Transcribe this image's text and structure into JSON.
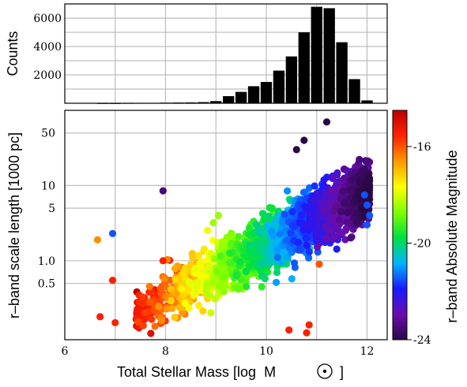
{
  "chart_data": [
    {
      "type": "bar",
      "name": "mass-histogram",
      "ylabel": "Counts",
      "yticks": [
        2000,
        4000,
        6000
      ],
      "ylim": [
        0,
        7000
      ],
      "xlim": [
        6,
        12.4
      ],
      "bin_width": 0.25,
      "bins": [
        {
          "x": 6.75,
          "y": 10
        },
        {
          "x": 7.0,
          "y": 10
        },
        {
          "x": 7.25,
          "y": 20
        },
        {
          "x": 7.5,
          "y": 25
        },
        {
          "x": 7.75,
          "y": 30
        },
        {
          "x": 8.0,
          "y": 40
        },
        {
          "x": 8.25,
          "y": 50
        },
        {
          "x": 8.5,
          "y": 60
        },
        {
          "x": 8.75,
          "y": 80
        },
        {
          "x": 9.0,
          "y": 150
        },
        {
          "x": 9.25,
          "y": 500
        },
        {
          "x": 9.5,
          "y": 800
        },
        {
          "x": 9.75,
          "y": 1200
        },
        {
          "x": 10.0,
          "y": 1500
        },
        {
          "x": 10.25,
          "y": 2300
        },
        {
          "x": 10.5,
          "y": 3300
        },
        {
          "x": 10.75,
          "y": 5000
        },
        {
          "x": 11.0,
          "y": 6800
        },
        {
          "x": 11.25,
          "y": 6700
        },
        {
          "x": 11.5,
          "y": 4300
        },
        {
          "x": 11.75,
          "y": 1700
        },
        {
          "x": 12.0,
          "y": 200
        }
      ]
    },
    {
      "type": "scatter",
      "name": "size-mass-relation",
      "xlabel_prefix": "Total Stellar Mass [log  M",
      "xlabel_suffix": "  ]",
      "ylabel": "r–band scale length [1000 pc]",
      "xlim": [
        6,
        12.4
      ],
      "xticks": [
        6,
        8,
        10,
        12
      ],
      "ylim_log10": [
        -1.05,
        2.0
      ],
      "yticks": [
        {
          "value": 0.5,
          "label": "0.5"
        },
        {
          "value": 1.0,
          "label": "1.0"
        },
        {
          "value": 5,
          "label": "5"
        },
        {
          "value": 10,
          "label": "10"
        },
        {
          "value": 50,
          "label": "50"
        }
      ],
      "color_scale": {
        "label": "r–band Absolute Magnitude",
        "range": [
          -24,
          -14.5
        ],
        "ticks": [
          -16,
          -20,
          -24
        ],
        "stops": [
          "#2a0845",
          "#6a0dad",
          "#1a1aff",
          "#00b4ff",
          "#00e040",
          "#7fff00",
          "#ffff00",
          "#ff9900",
          "#ff2200",
          "#bb0000"
        ]
      },
      "outliers": [
        {
          "x": 6.65,
          "y": 1.9,
          "m": -16.5
        },
        {
          "x": 6.95,
          "y": 2.3,
          "m": -21.5
        },
        {
          "x": 6.95,
          "y": 0.55,
          "m": -15.5
        },
        {
          "x": 6.7,
          "y": 0.18,
          "m": -15.5
        },
        {
          "x": 7.0,
          "y": 0.15,
          "m": -15.5
        },
        {
          "x": 7.95,
          "y": 8.5,
          "m": -23.5
        },
        {
          "x": 7.95,
          "y": 1.0,
          "m": -15.5
        },
        {
          "x": 8.95,
          "y": 3.2,
          "m": -18.5
        },
        {
          "x": 9.05,
          "y": 4.0,
          "m": -18.5
        },
        {
          "x": 10.45,
          "y": 0.12,
          "m": -15.5
        },
        {
          "x": 10.8,
          "y": 0.11,
          "m": -15.5
        },
        {
          "x": 10.85,
          "y": 0.14,
          "m": -15.5
        },
        {
          "x": 10.6,
          "y": 30,
          "m": -24
        },
        {
          "x": 10.75,
          "y": 40,
          "m": -24
        },
        {
          "x": 11.2,
          "y": 70,
          "m": -24
        },
        {
          "x": 11.05,
          "y": 0.9,
          "m": -16
        },
        {
          "x": 12.0,
          "y": 3.0,
          "m": -21.5
        },
        {
          "x": 12.05,
          "y": 4.0,
          "m": -21.5
        },
        {
          "x": 12.0,
          "y": 5.5,
          "m": -21.5
        },
        {
          "x": 11.95,
          "y": 7.5,
          "m": -21.5
        }
      ]
    }
  ]
}
